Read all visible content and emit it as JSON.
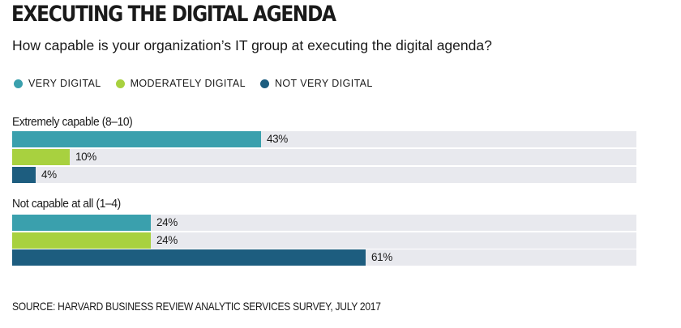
{
  "chart_data": {
    "type": "bar",
    "orientation": "horizontal",
    "title": "EXECUTING THE DIGITAL AGENDA",
    "subtitle": "How capable is your organization’s IT group at executing the digital agenda?",
    "categories": [
      "Extremely capable (8–10)",
      "Not capable at all (1–4)"
    ],
    "series": [
      {
        "name": "VERY DIGITAL",
        "color": "#3aa0ad",
        "values": [
          43,
          24
        ]
      },
      {
        "name": "MODERATELY DIGITAL",
        "color": "#a8d13f",
        "values": [
          10,
          24
        ]
      },
      {
        "name": "NOT VERY DIGITAL",
        "color": "#1d5d7f",
        "values": [
          4,
          61
        ]
      }
    ],
    "value_format": "{v}%",
    "xlim": [
      0,
      100
    ],
    "legend_position": "top-left",
    "source": "SOURCE: HARVARD BUSINESS REVIEW ANALYTIC SERVICES SURVEY, JULY 2017"
  }
}
